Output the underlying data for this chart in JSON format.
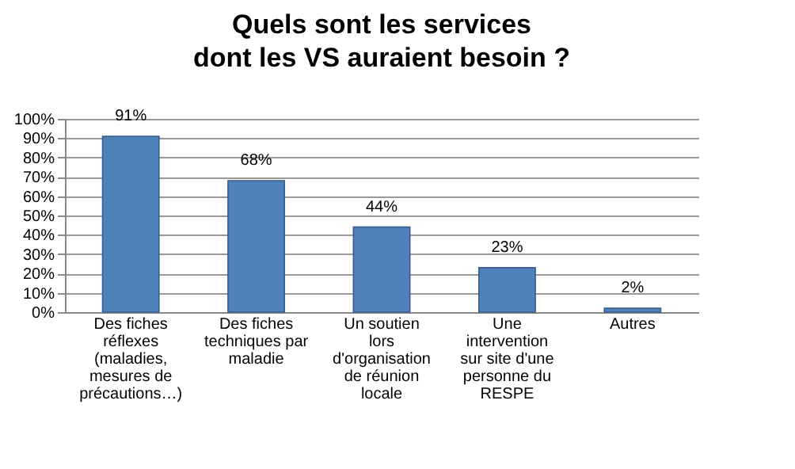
{
  "chart_data": {
    "type": "bar",
    "title": "Quels sont les services dont les VS auraient besoin ?",
    "categories": [
      "Des fiches réflexes (maladies, mesures de précautions…)",
      "Des fiches techniques par maladie",
      "Un soutien lors d'organisation de réunion locale",
      "Une intervention sur site d'une personne du RESPE",
      "Autres"
    ],
    "values": [
      91,
      68,
      44,
      23,
      2
    ],
    "value_labels": [
      "91%",
      "68%",
      "44%",
      "23%",
      "2%"
    ],
    "color": "#4f81bd",
    "ylim": [
      0,
      100
    ],
    "yticks": [
      {
        "value": 0,
        "label": "0%"
      },
      {
        "value": 10,
        "label": "10%"
      },
      {
        "value": 20,
        "label": "20%"
      },
      {
        "value": 30,
        "label": "30%"
      },
      {
        "value": 40,
        "label": "40%"
      },
      {
        "value": 50,
        "label": "50%"
      },
      {
        "value": 60,
        "label": "60%"
      },
      {
        "value": 70,
        "label": "70%"
      },
      {
        "value": 80,
        "label": "80%"
      },
      {
        "value": 90,
        "label": "90%"
      },
      {
        "value": 100,
        "label": "100%"
      }
    ],
    "grid": true
  }
}
